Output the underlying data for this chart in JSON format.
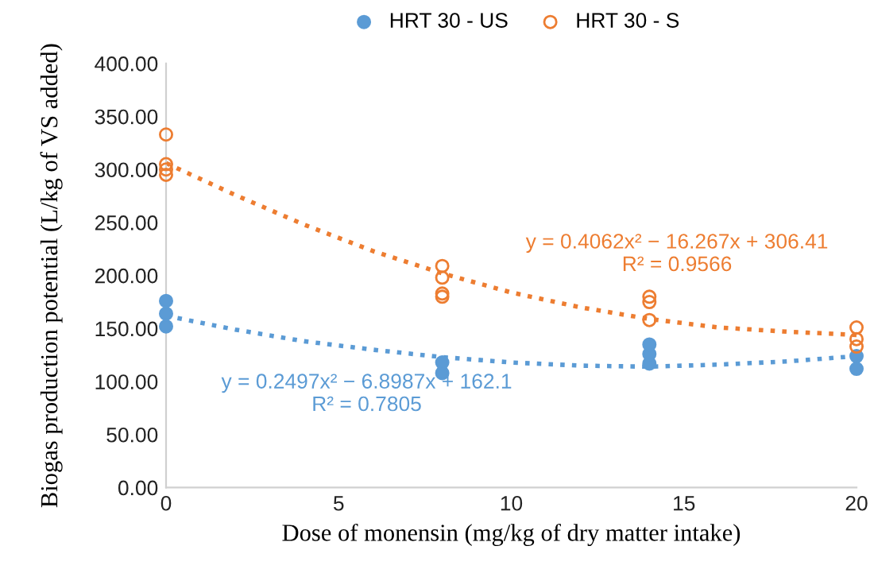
{
  "chart_data": {
    "type": "scatter",
    "xlabel": "Dose of monensin (mg/kg of dry matter intake)",
    "ylabel": "Biogas production potential (L/kg of VS added)",
    "xlim": [
      0,
      20
    ],
    "xticks": [
      0,
      5,
      10,
      15,
      20
    ],
    "ylim": [
      0,
      400
    ],
    "yticks": [
      {
        "value": 0,
        "label": "0.00"
      },
      {
        "value": 50,
        "label": "50.00"
      },
      {
        "value": 100,
        "label": "100.00"
      },
      {
        "value": 150,
        "label": "150.00"
      },
      {
        "value": 200,
        "label": "200.00"
      },
      {
        "value": 250,
        "label": "250.00"
      },
      {
        "value": 300,
        "label": "300.00"
      },
      {
        "value": 350,
        "label": "350.00"
      },
      {
        "value": 400,
        "label": "400.00"
      }
    ],
    "grid": false,
    "legend": "top",
    "marker": "circle",
    "series": [
      {
        "name": "HRT 30 - US",
        "color": "#5b9bd5",
        "x": [
          0,
          0,
          0,
          8,
          8,
          14,
          14,
          14,
          20,
          20
        ],
        "values": [
          152,
          164,
          176,
          108,
          118,
          117,
          126,
          135,
          112,
          124
        ]
      },
      {
        "name": "HRT 30 - S",
        "color": "#ed7d31",
        "x": [
          0,
          0,
          0,
          0,
          8,
          8,
          8,
          8,
          14,
          14,
          14,
          20,
          20,
          20
        ],
        "values": [
          333,
          305,
          300,
          295,
          209,
          198,
          183,
          180,
          180,
          175,
          158,
          151,
          140,
          133
        ]
      },
      {
        "type": "line",
        "color": "#5b9bd5",
        "line_style": "dotted",
        "marker": "none",
        "x": [
          0,
          2,
          4,
          6,
          8,
          10,
          12,
          14,
          16,
          18,
          20
        ],
        "values": [
          162,
          149,
          138,
          130,
          123,
          118,
          115,
          114,
          116,
          119,
          124
        ]
      },
      {
        "type": "line",
        "color": "#ed7d31",
        "line_style": "dotted",
        "marker": "none",
        "x": [
          0,
          2,
          4,
          6,
          8,
          10,
          12,
          14,
          16,
          18,
          20
        ],
        "values": [
          306,
          276,
          248,
          223,
          202,
          184,
          170,
          159,
          151,
          147,
          144
        ]
      }
    ],
    "annotations": [
      "y = 0.2497x² − 6.8987x + 162.1\nR² = 0.7805",
      "y = 0.4062x² − 16.267x + 306.41\nR² = 0.9566"
    ]
  }
}
